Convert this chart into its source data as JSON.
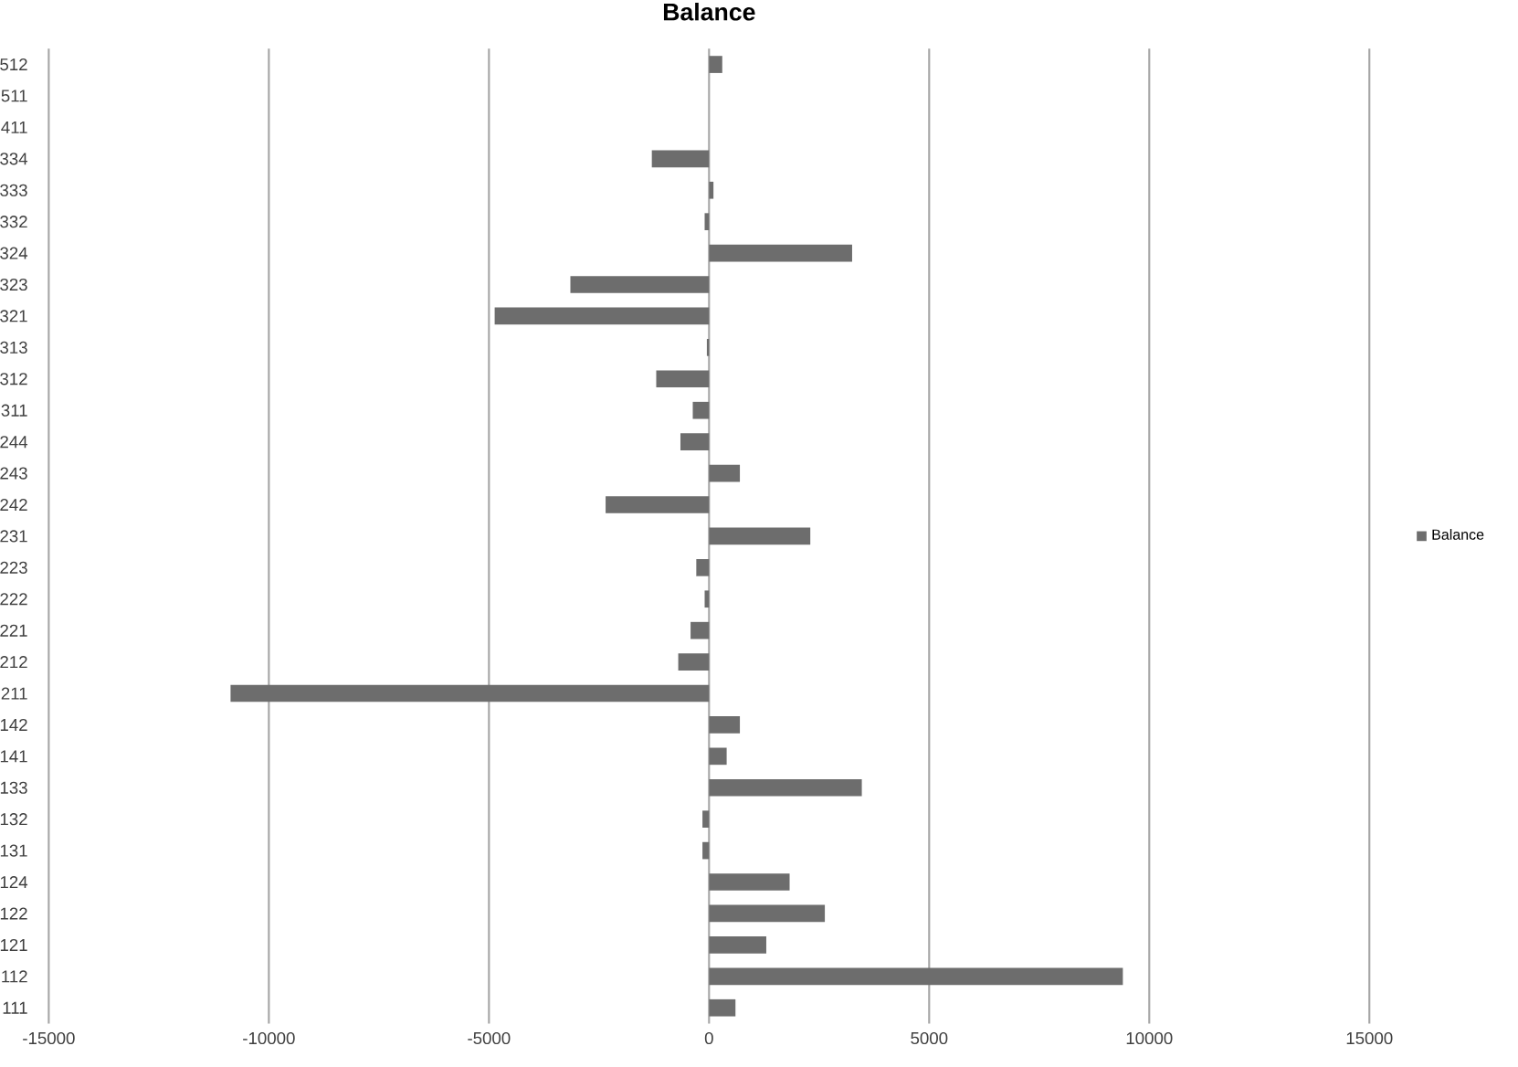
{
  "chart_data": {
    "type": "bar",
    "orientation": "horizontal",
    "title": "Balance",
    "categories": [
      "512",
      "511",
      "411",
      "334",
      "333",
      "332",
      "324",
      "323",
      "321",
      "313",
      "312",
      "311",
      "244",
      "243",
      "242",
      "231",
      "223",
      "222",
      "221",
      "212",
      "211",
      "142",
      "141",
      "133",
      "132",
      "131",
      "124",
      "122",
      "121",
      "112",
      "111"
    ],
    "series": [
      {
        "name": "Balance",
        "color": "#6d6d6d",
        "values": [
          300,
          0,
          0,
          -1300,
          100,
          -100,
          3250,
          -3150,
          -4870,
          -50,
          -1200,
          -370,
          -650,
          700,
          -2350,
          2300,
          -290,
          -100,
          -420,
          -700,
          -10870,
          700,
          400,
          3470,
          -150,
          -150,
          1830,
          2630,
          1300,
          9400,
          600
        ]
      }
    ],
    "xlim": [
      -15000,
      15000
    ],
    "xticks": [
      -15000,
      -10000,
      -5000,
      0,
      5000,
      10000,
      15000
    ],
    "grid": "x",
    "legend": "right"
  }
}
